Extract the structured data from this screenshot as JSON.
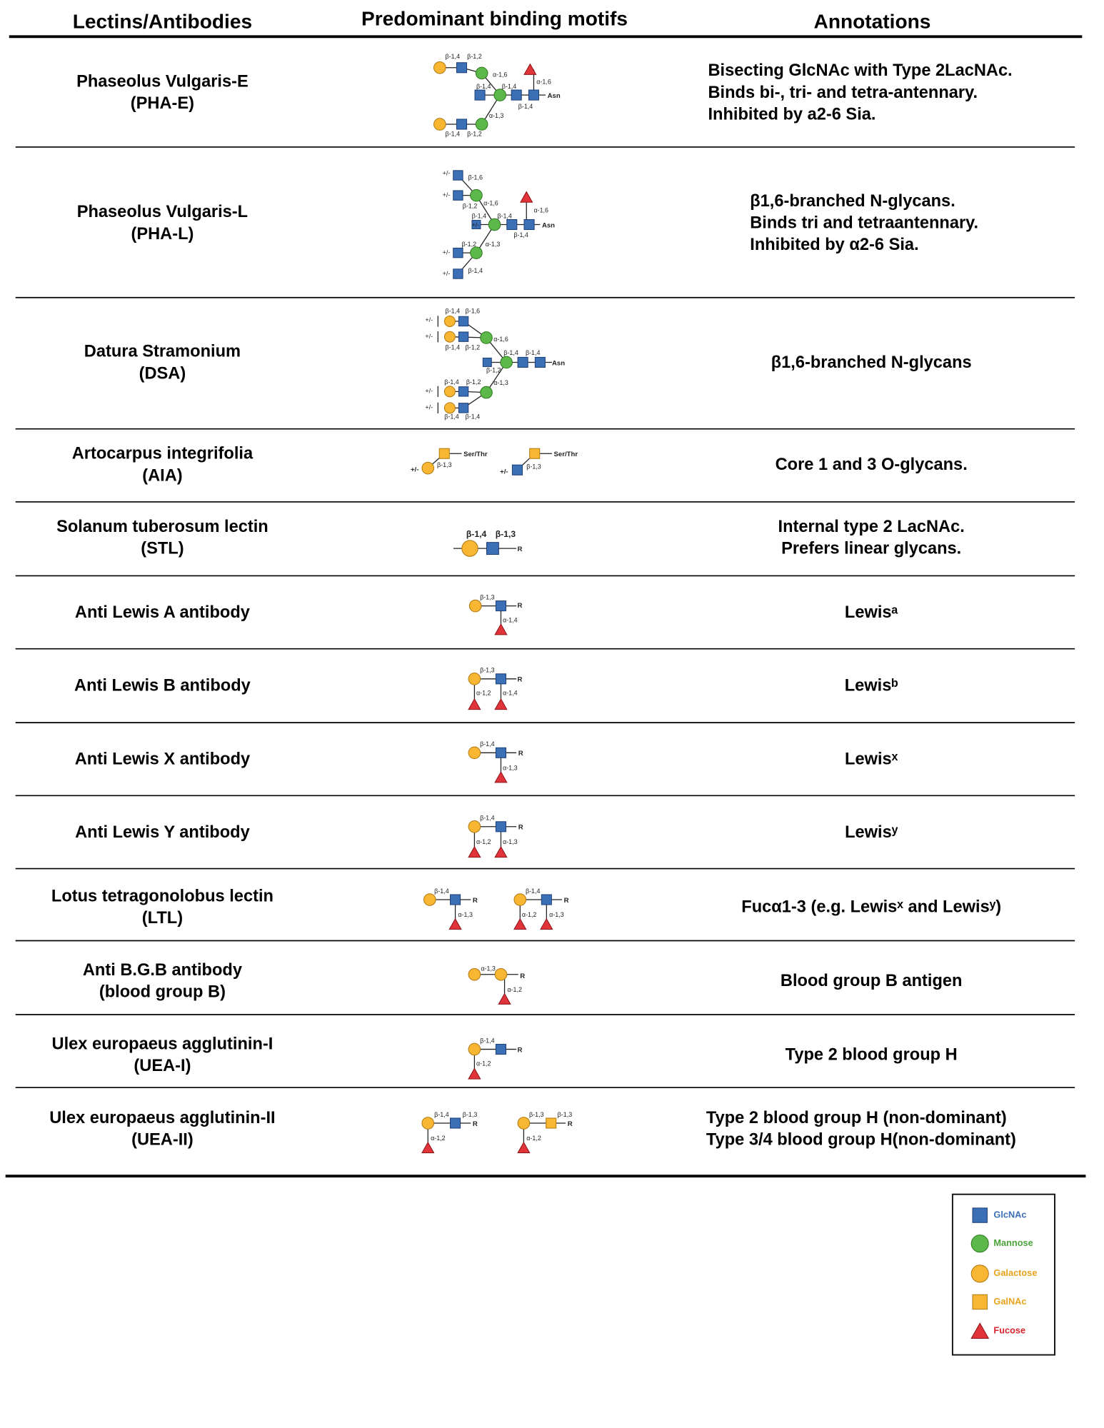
{
  "header": {
    "columns": [
      "Lectins/Antibodies",
      "Predominant binding motifs",
      "Annotations"
    ]
  },
  "rows": [
    {
      "name": [
        "Phaseolus Vulgaris-E",
        "(PHA-E)"
      ],
      "motif_labels": [
        "β-1,4",
        "β-1,2",
        "α-1,6",
        "β-1,4",
        "β-1,4",
        "α-1,6",
        "Asn",
        "β-1,4",
        "α-1,3",
        "β-1,4",
        "β-1,2"
      ],
      "annotation": [
        "Bisecting GlcNAc with Type 2LacNAc.",
        "Binds bi-, tri- and tetra-antennary.",
        "Inhibited by a2-6 Sia."
      ]
    },
    {
      "name": [
        "Phaseolus Vulgaris-L",
        "(PHA-L)"
      ],
      "motif_labels": [
        "+/-",
        "β-1,6",
        "+/-",
        "α-1,6",
        "β-1,2",
        "β-1,4",
        "β-1,4",
        "α-1,6",
        "Asn",
        "β-1,4",
        "+/-",
        "β-1,2",
        "α-1,3",
        "+/-",
        "+/-",
        "β-1,4"
      ],
      "annotation": [
        "β1,6-branched N-glycans.",
        "Binds tri and tetraantennary.",
        "Inhibited by α2-6 Sia."
      ]
    },
    {
      "name": [
        "Datura Stramonium",
        "(DSA)"
      ],
      "motif_labels": [
        "β-1,4",
        "β-1,6",
        "+/-",
        "+/-",
        "β-1,4",
        "β-1,2",
        "α-1,6",
        "β-1,4",
        "β-1,4",
        "Asn",
        "β-1,2",
        "β-1,4",
        "β-1,2",
        "α-1,3",
        "+/-",
        "+/-",
        "β-1,4",
        "β-1,4"
      ],
      "annotation": [
        "β1,6-branched N-glycans"
      ]
    },
    {
      "name": [
        "Artocarpus integrifolia",
        "(AIA)"
      ],
      "motif_labels": [
        "Ser/Thr",
        "β-1,3",
        "+/-",
        "Ser/Thr",
        "β-1,3",
        "+/-"
      ],
      "annotation": [
        "Core 1 and 3 O-glycans."
      ]
    },
    {
      "name": [
        "Solanum tuberosum lectin",
        "(STL)"
      ],
      "motif_labels": [
        "β-1,4",
        "β-1,3",
        "R"
      ],
      "annotation": [
        "Internal type 2 LacNAc.",
        "Prefers linear glycans."
      ]
    },
    {
      "name": [
        "Anti Lewis A antibody"
      ],
      "motif_labels": [
        "β-1,3",
        "R",
        "α-1,4"
      ],
      "annotation": [
        "Lewisᵃ"
      ]
    },
    {
      "name": [
        "Anti Lewis B antibody"
      ],
      "motif_labels": [
        "β-1,3",
        "R",
        "α-1,2",
        "α-1,4"
      ],
      "annotation": [
        "Lewisᵇ"
      ]
    },
    {
      "name": [
        "Anti Lewis X antibody"
      ],
      "motif_labels": [
        "β-1,4",
        "R",
        "α-1,3"
      ],
      "annotation": [
        "Lewisˣ"
      ]
    },
    {
      "name": [
        "Anti Lewis Y antibody"
      ],
      "motif_labels": [
        "β-1,4",
        "R",
        "α-1,2",
        "α-1,3"
      ],
      "annotation": [
        "Lewisʸ"
      ]
    },
    {
      "name": [
        "Lotus tetragonolobus lectin",
        "(LTL)"
      ],
      "motif_labels": [
        "β-1,4",
        "R",
        "α-1,3",
        "β-1,4",
        "R",
        "α-1,2",
        "α-1,3"
      ],
      "annotation": [
        "Fucα1-3 (e.g. Lewisˣ and Lewisʸ)"
      ]
    },
    {
      "name": [
        "Anti B.G.B antibody",
        "(blood group B)"
      ],
      "motif_labels": [
        "α-1,3",
        "R",
        "α-1,2"
      ],
      "annotation": [
        "Blood group B antigen"
      ]
    },
    {
      "name": [
        "Ulex europaeus agglutinin-I",
        "(UEA-I)"
      ],
      "motif_labels": [
        "β-1,4",
        "R",
        "α-1,2"
      ],
      "annotation": [
        "Type 2 blood group H"
      ]
    },
    {
      "name": [
        "Ulex europaeus agglutinin-II",
        "(UEA-II)"
      ],
      "motif_labels": [
        "β-1,4",
        "β-1,3",
        "R",
        "α-1,2",
        "β-1,3",
        "β-1,3",
        "R",
        "α-1,2"
      ],
      "annotation": [
        "Type 2 blood group H (non-dominant)",
        "Type 3/4 blood group H(non-dominant)"
      ]
    }
  ],
  "legend": {
    "items": [
      {
        "name": "GlcNAc"
      },
      {
        "name": "Mannose"
      },
      {
        "name": "Galactose"
      },
      {
        "name": "GalNAc"
      },
      {
        "name": "Fucose"
      }
    ]
  }
}
